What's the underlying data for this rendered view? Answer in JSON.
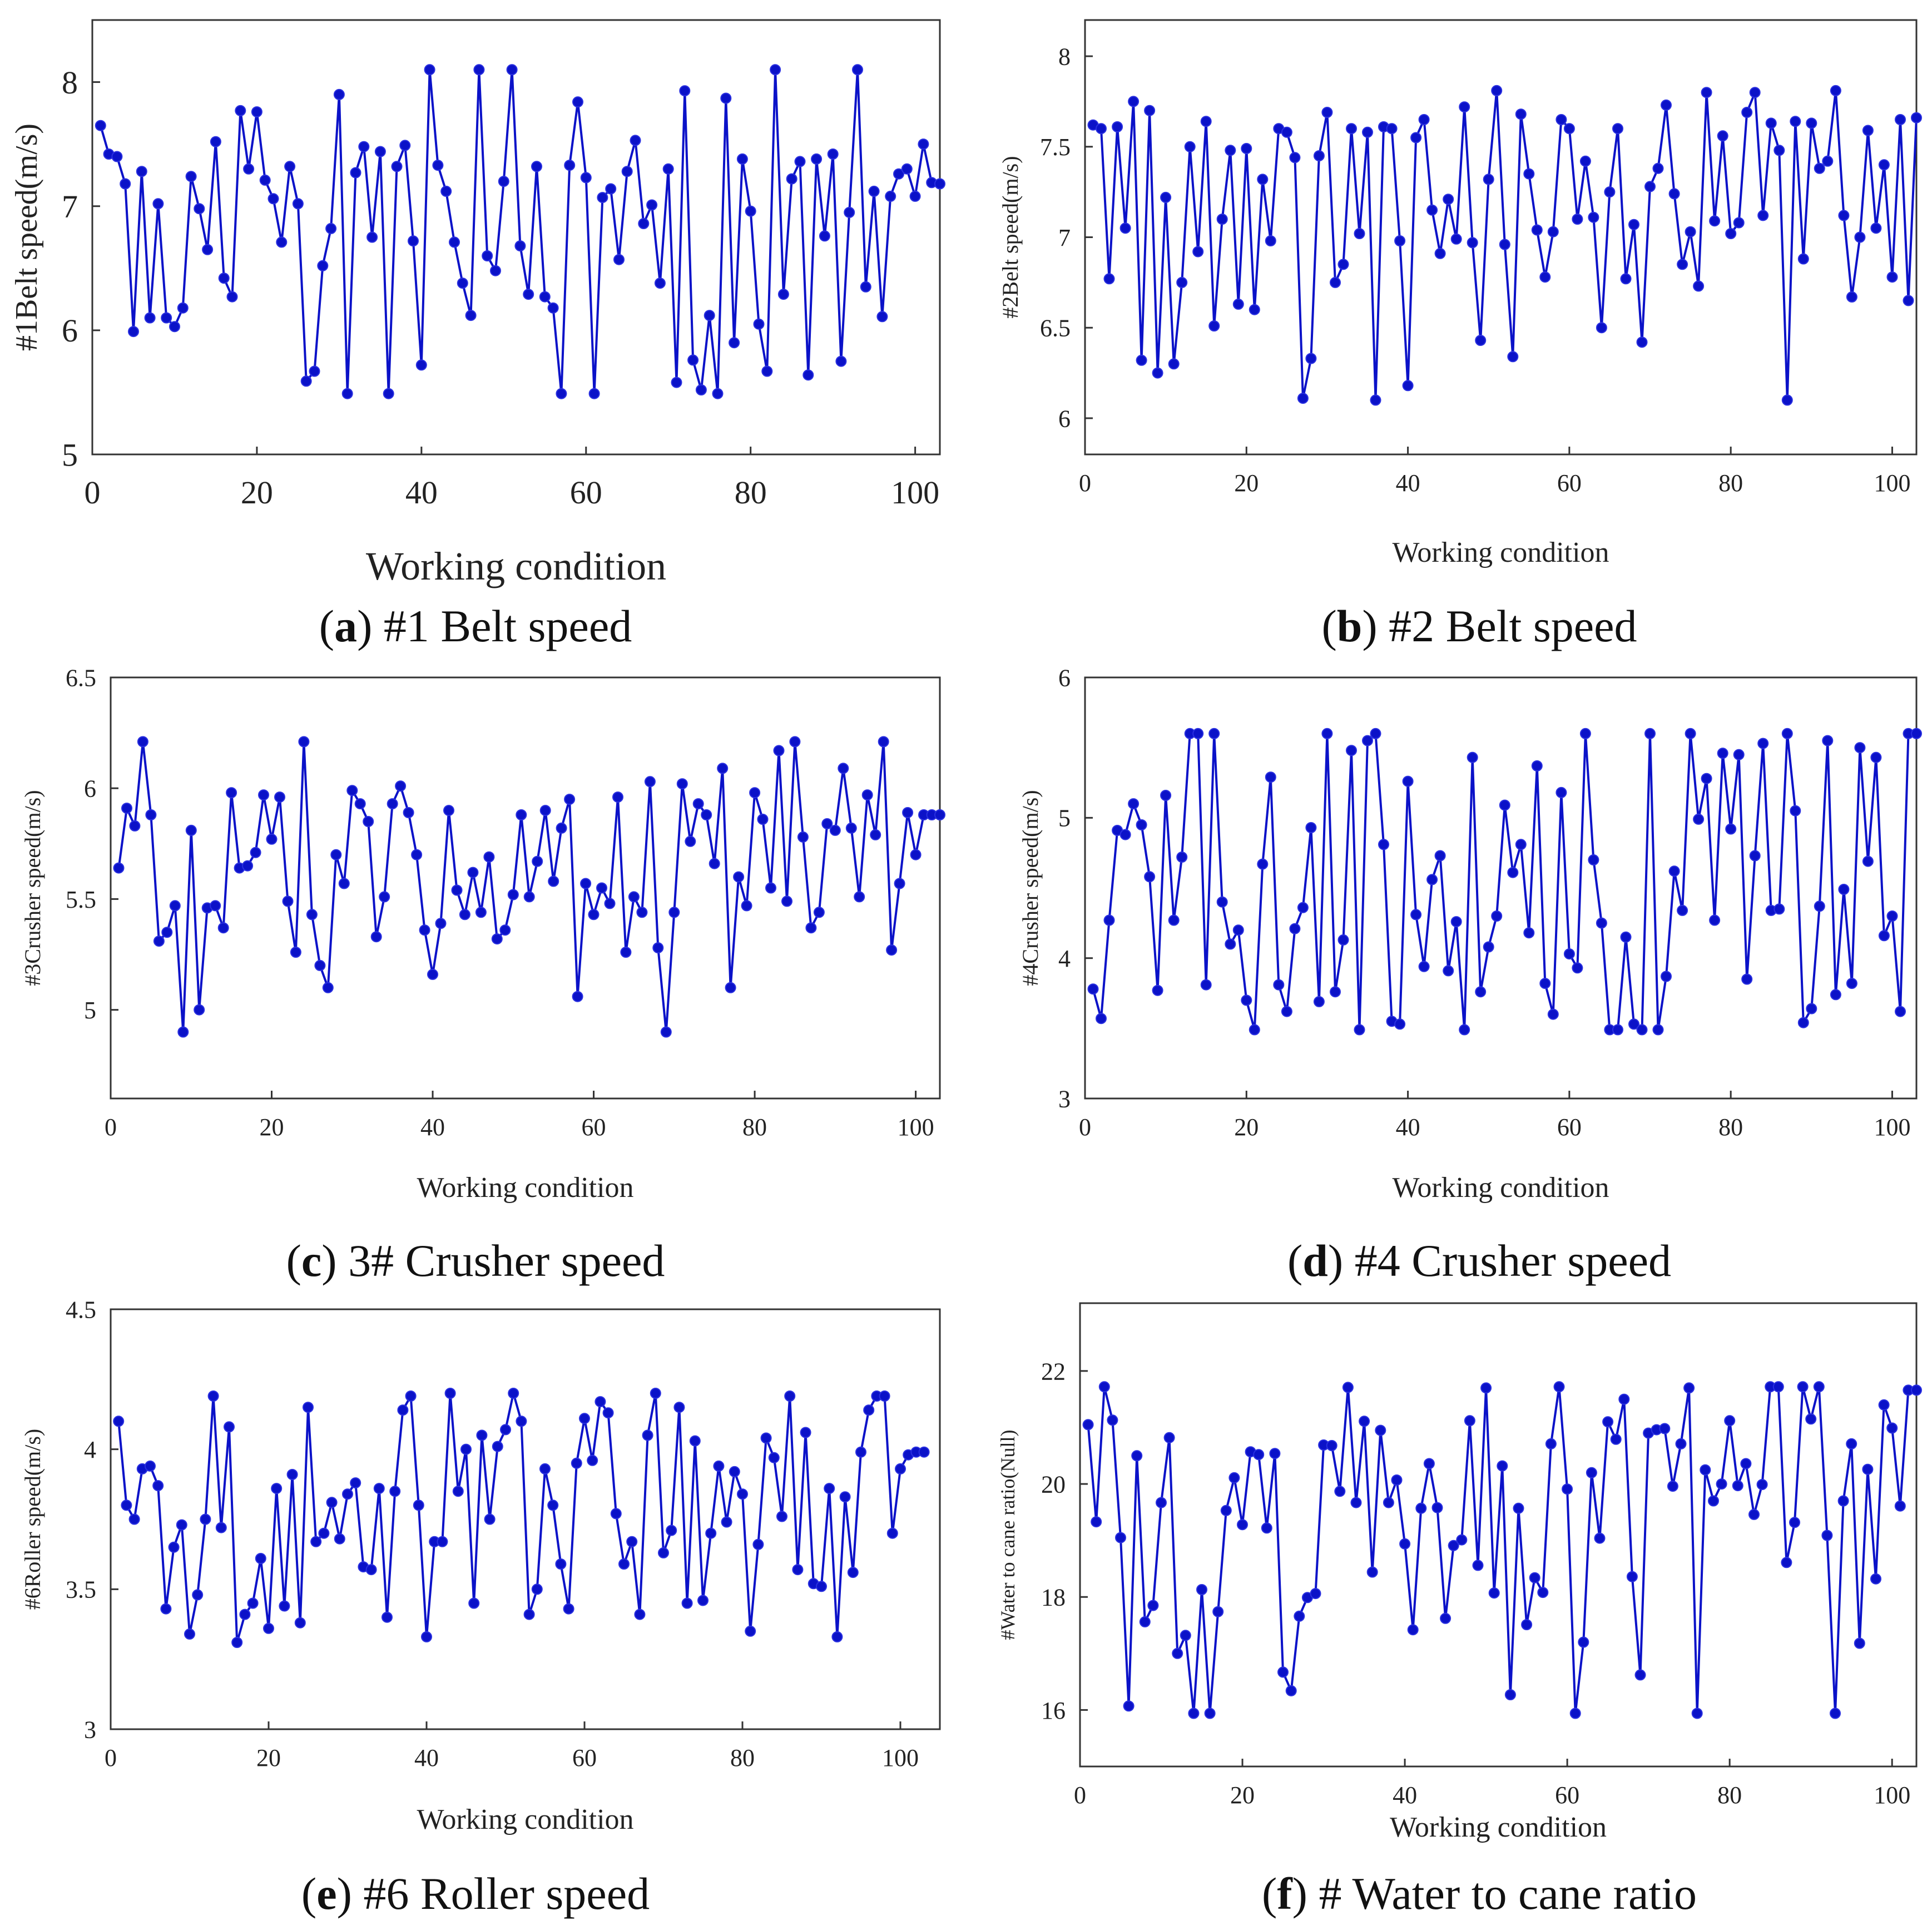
{
  "chart_data": [
    {
      "type": "line",
      "panel": "a",
      "caption_letter": "a",
      "caption_text": "#1 Belt speed",
      "xlabel": "Working condition",
      "ylabel": "#1Belt speed(m/s)",
      "xlim": [
        0,
        103
      ],
      "ylim": [
        5,
        8.5
      ],
      "xticks": [
        0,
        20,
        40,
        60,
        80,
        100
      ],
      "yticks": [
        5,
        6,
        7,
        8
      ],
      "line_color": "#0b12c8",
      "x": [
        1,
        2,
        3,
        4,
        5,
        6,
        7,
        8,
        9,
        10,
        11,
        12,
        13,
        14,
        15,
        16,
        17,
        18,
        19,
        20,
        21,
        22,
        23,
        24,
        25,
        26,
        27,
        28,
        29,
        30,
        31,
        32,
        33,
        34,
        35,
        36,
        37,
        38,
        39,
        40,
        41,
        42,
        43,
        44,
        45,
        46,
        47,
        48,
        49,
        50,
        51,
        52,
        53,
        54,
        55,
        56,
        57,
        58,
        59,
        60,
        61,
        62,
        63,
        64,
        65,
        66,
        67,
        68,
        69,
        70,
        71,
        72,
        73,
        74,
        75,
        76,
        77,
        78,
        79,
        80,
        81,
        82,
        83,
        84,
        85,
        86,
        87,
        88,
        89,
        90,
        91,
        92,
        93,
        94,
        95,
        96,
        97,
        98,
        99,
        100,
        101,
        102,
        103
      ],
      "values": [
        7.65,
        7.42,
        7.4,
        7.18,
        5.99,
        7.28,
        6.1,
        7.02,
        6.1,
        6.03,
        6.18,
        7.24,
        6.98,
        6.65,
        7.52,
        6.42,
        6.27,
        7.77,
        7.3,
        7.76,
        7.21,
        7.06,
        6.71,
        7.32,
        7.02,
        5.59,
        5.67,
        6.52,
        6.82,
        7.9,
        5.49,
        7.27,
        7.48,
        6.75,
        7.44,
        5.49,
        7.32,
        7.49,
        6.72,
        5.72,
        8.1,
        7.33,
        7.12,
        6.71,
        6.38,
        6.12,
        8.1,
        6.6,
        6.48,
        7.2,
        8.1,
        6.68,
        6.29,
        7.32,
        6.27,
        6.18,
        5.49,
        7.33,
        7.84,
        7.23,
        5.49,
        7.07,
        7.14,
        6.57,
        7.28,
        7.53,
        6.86,
        7.01,
        6.38,
        7.3,
        5.58,
        7.93,
        5.76,
        5.52,
        6.12,
        5.49,
        7.87,
        5.9,
        7.38,
        6.96,
        6.05,
        5.67,
        8.1,
        6.29,
        7.22,
        7.36,
        5.64,
        7.38,
        6.76,
        7.42,
        5.75,
        6.95,
        8.1,
        6.35,
        7.12,
        6.11,
        7.08,
        7.26,
        7.3,
        7.08,
        7.5,
        7.19,
        7.18
      ]
    },
    {
      "type": "line",
      "panel": "b",
      "caption_letter": "b",
      "caption_text": "#2 Belt speed",
      "xlabel": "Working condition",
      "ylabel": "#2Belt speed(m/s)",
      "xlim": [
        0,
        103
      ],
      "ylim": [
        5.8,
        8.2
      ],
      "xticks": [
        0,
        20,
        40,
        60,
        80,
        100
      ],
      "yticks": [
        6,
        6.5,
        7,
        7.5,
        8
      ],
      "ytick_labels": [
        "6",
        "6.5",
        "7",
        "7.5",
        "8"
      ],
      "line_color": "#0b12c8",
      "x": [
        1,
        2,
        3,
        4,
        5,
        6,
        7,
        8,
        9,
        10,
        11,
        12,
        13,
        14,
        15,
        16,
        17,
        18,
        19,
        20,
        21,
        22,
        23,
        24,
        25,
        26,
        27,
        28,
        29,
        30,
        31,
        32,
        33,
        34,
        35,
        36,
        37,
        38,
        39,
        40,
        41,
        42,
        43,
        44,
        45,
        46,
        47,
        48,
        49,
        50,
        51,
        52,
        53,
        54,
        55,
        56,
        57,
        58,
        59,
        60,
        61,
        62,
        63,
        64,
        65,
        66,
        67,
        68,
        69,
        70,
        71,
        72,
        73,
        74,
        75,
        76,
        77,
        78,
        79,
        80,
        81,
        82,
        83,
        84,
        85,
        86,
        87,
        88,
        89,
        90,
        91,
        92,
        93,
        94,
        95,
        96,
        97,
        98,
        99,
        100,
        101,
        102,
        103
      ],
      "values": [
        7.62,
        7.6,
        6.77,
        7.61,
        7.05,
        7.75,
        6.32,
        7.7,
        6.25,
        7.22,
        6.3,
        6.75,
        7.5,
        6.92,
        7.64,
        6.51,
        7.1,
        7.48,
        6.63,
        7.49,
        6.6,
        7.32,
        6.98,
        7.6,
        7.58,
        7.44,
        6.11,
        6.33,
        7.45,
        7.69,
        6.75,
        6.85,
        7.6,
        7.02,
        7.58,
        6.1,
        7.61,
        7.6,
        6.98,
        6.18,
        7.55,
        7.65,
        7.15,
        6.91,
        7.21,
        6.99,
        7.72,
        6.97,
        6.43,
        7.32,
        7.81,
        6.96,
        6.34,
        7.68,
        7.35,
        7.04,
        6.78,
        7.03,
        7.65,
        7.6,
        7.1,
        7.42,
        7.11,
        6.5,
        7.25,
        7.6,
        6.77,
        7.07,
        6.42,
        7.28,
        7.38,
        7.73,
        7.24,
        6.85,
        7.03,
        6.73,
        7.8,
        7.09,
        7.56,
        7.02,
        7.08,
        7.69,
        7.8,
        7.12,
        7.63,
        7.48,
        6.1,
        7.64,
        6.88,
        7.63,
        7.38,
        7.42,
        7.81,
        7.12,
        6.67,
        7.0,
        7.59,
        7.05,
        7.4,
        6.78,
        7.65,
        6.65,
        7.66
      ]
    },
    {
      "type": "line",
      "panel": "c",
      "caption_letter": "c",
      "caption_text": "3# Crusher speed",
      "xlabel": "Working condition",
      "ylabel": "#3Crusher speed(m/s)",
      "xlim": [
        0,
        103
      ],
      "ylim": [
        4.6,
        6.5
      ],
      "xticks": [
        0,
        20,
        40,
        60,
        80,
        100
      ],
      "yticks": [
        5,
        5.5,
        6,
        6.5
      ],
      "ytick_labels": [
        "5",
        "5.5",
        "6",
        "6.5"
      ],
      "line_color": "#0b12c8",
      "x": [
        1,
        2,
        3,
        4,
        5,
        6,
        7,
        8,
        9,
        10,
        11,
        12,
        13,
        14,
        15,
        16,
        17,
        18,
        19,
        20,
        21,
        22,
        23,
        24,
        25,
        26,
        27,
        28,
        29,
        30,
        31,
        32,
        33,
        34,
        35,
        36,
        37,
        38,
        39,
        40,
        41,
        42,
        43,
        44,
        45,
        46,
        47,
        48,
        49,
        50,
        51,
        52,
        53,
        54,
        55,
        56,
        57,
        58,
        59,
        60,
        61,
        62,
        63,
        64,
        65,
        66,
        67,
        68,
        69,
        70,
        71,
        72,
        73,
        74,
        75,
        76,
        77,
        78,
        79,
        80,
        81,
        82,
        83,
        84,
        85,
        86,
        87,
        88,
        89,
        90,
        91,
        92,
        93,
        94,
        95,
        96,
        97,
        98,
        99,
        100,
        101,
        102,
        103
      ],
      "values": [
        5.64,
        5.91,
        5.83,
        6.21,
        5.88,
        5.31,
        5.35,
        5.47,
        4.9,
        5.81,
        5.0,
        5.46,
        5.47,
        5.37,
        5.98,
        5.64,
        5.65,
        5.71,
        5.97,
        5.77,
        5.96,
        5.49,
        5.26,
        6.21,
        5.43,
        5.2,
        5.1,
        5.7,
        5.57,
        5.99,
        5.93,
        5.85,
        5.33,
        5.51,
        5.93,
        6.01,
        5.89,
        5.7,
        5.36,
        5.16,
        5.39,
        5.9,
        5.54,
        5.43,
        5.62,
        5.44,
        5.69,
        5.32,
        5.36,
        5.52,
        5.88,
        5.51,
        5.67,
        5.9,
        5.58,
        5.82,
        5.95,
        5.06,
        5.57,
        5.43,
        5.55,
        5.48,
        5.96,
        5.26,
        5.51,
        5.44,
        6.03,
        5.28,
        4.9,
        5.44,
        6.02,
        5.76,
        5.93,
        5.88,
        5.66,
        6.09,
        5.1,
        5.6,
        5.47,
        5.98,
        5.86,
        5.55,
        6.17,
        5.49,
        6.21,
        5.78,
        5.37,
        5.44,
        5.84,
        5.81,
        6.09,
        5.82,
        5.51,
        5.97,
        5.79,
        6.21,
        5.27,
        5.57,
        5.89,
        5.7,
        5.88,
        5.88,
        5.88
      ]
    },
    {
      "type": "line",
      "panel": "d",
      "caption_letter": "d",
      "caption_text": "#4 Crusher speed",
      "xlabel": "Working condition",
      "ylabel": "#4Crusher speed(m/s)",
      "xlim": [
        0,
        103
      ],
      "ylim": [
        3,
        6
      ],
      "xticks": [
        0,
        20,
        40,
        60,
        80,
        100
      ],
      "yticks": [
        3,
        4,
        5,
        6
      ],
      "line_color": "#0b12c8",
      "x": [
        1,
        2,
        3,
        4,
        5,
        6,
        7,
        8,
        9,
        10,
        11,
        12,
        13,
        14,
        15,
        16,
        17,
        18,
        19,
        20,
        21,
        22,
        23,
        24,
        25,
        26,
        27,
        28,
        29,
        30,
        31,
        32,
        33,
        34,
        35,
        36,
        37,
        38,
        39,
        40,
        41,
        42,
        43,
        44,
        45,
        46,
        47,
        48,
        49,
        50,
        51,
        52,
        53,
        54,
        55,
        56,
        57,
        58,
        59,
        60,
        61,
        62,
        63,
        64,
        65,
        66,
        67,
        68,
        69,
        70,
        71,
        72,
        73,
        74,
        75,
        76,
        77,
        78,
        79,
        80,
        81,
        82,
        83,
        84,
        85,
        86,
        87,
        88,
        89,
        90,
        91,
        92,
        93,
        94,
        95,
        96,
        97,
        98,
        99,
        100,
        101,
        102,
        103
      ],
      "values": [
        3.78,
        3.57,
        4.27,
        4.91,
        4.88,
        5.1,
        4.95,
        4.58,
        3.77,
        5.16,
        4.27,
        4.72,
        5.6,
        5.6,
        3.81,
        5.6,
        4.4,
        4.1,
        4.2,
        3.7,
        3.49,
        4.67,
        5.29,
        3.81,
        3.62,
        4.21,
        4.36,
        4.93,
        3.69,
        5.6,
        3.76,
        4.13,
        5.48,
        3.49,
        5.55,
        5.6,
        4.81,
        3.55,
        3.53,
        5.26,
        4.31,
        3.94,
        4.56,
        4.73,
        3.91,
        4.26,
        3.49,
        5.43,
        3.76,
        4.08,
        4.3,
        5.09,
        4.61,
        4.81,
        4.18,
        5.37,
        3.82,
        3.6,
        5.18,
        4.03,
        3.93,
        5.6,
        4.7,
        4.25,
        3.49,
        3.49,
        4.15,
        3.53,
        3.49,
        5.6,
        3.49,
        3.87,
        4.62,
        4.34,
        5.6,
        4.99,
        5.28,
        4.27,
        5.46,
        4.92,
        5.45,
        3.85,
        4.73,
        5.53,
        4.34,
        4.35,
        5.6,
        5.05,
        3.54,
        3.64,
        4.37,
        5.55,
        3.74,
        4.49,
        3.82,
        5.5,
        4.69,
        5.43,
        4.16,
        4.3,
        3.62,
        5.6,
        5.6
      ]
    },
    {
      "type": "line",
      "panel": "e",
      "caption_letter": "e",
      "caption_text": "#6 Roller speed",
      "xlabel": "Working condition",
      "ylabel": "#6Roller speed(m/s)",
      "xlim": [
        0,
        105
      ],
      "ylim": [
        3,
        4.5
      ],
      "xticks": [
        0,
        20,
        40,
        60,
        80,
        100
      ],
      "yticks": [
        3,
        3.5,
        4,
        4.5
      ],
      "ytick_labels": [
        "3",
        "3.5",
        "4",
        "4.5"
      ],
      "line_color": "#0b12c8",
      "x": [
        1,
        2,
        3,
        4,
        5,
        6,
        7,
        8,
        9,
        10,
        11,
        12,
        13,
        14,
        15,
        16,
        17,
        18,
        19,
        20,
        21,
        22,
        23,
        24,
        25,
        26,
        27,
        28,
        29,
        30,
        31,
        32,
        33,
        34,
        35,
        36,
        37,
        38,
        39,
        40,
        41,
        42,
        43,
        44,
        45,
        46,
        47,
        48,
        49,
        50,
        51,
        52,
        53,
        54,
        55,
        56,
        57,
        58,
        59,
        60,
        61,
        62,
        63,
        64,
        65,
        66,
        67,
        68,
        69,
        70,
        71,
        72,
        73,
        74,
        75,
        76,
        77,
        78,
        79,
        80,
        81,
        82,
        83,
        84,
        85,
        86,
        87,
        88,
        89,
        90,
        91,
        92,
        93,
        94,
        95,
        96,
        97,
        98,
        99,
        100,
        101,
        102,
        103
      ],
      "values": [
        4.1,
        3.8,
        3.75,
        3.93,
        3.94,
        3.87,
        3.43,
        3.65,
        3.73,
        3.34,
        3.48,
        3.75,
        4.19,
        3.72,
        4.08,
        3.31,
        3.41,
        3.45,
        3.61,
        3.36,
        3.86,
        3.44,
        3.91,
        3.38,
        4.15,
        3.67,
        3.7,
        3.81,
        3.68,
        3.84,
        3.88,
        3.58,
        3.57,
        3.86,
        3.4,
        3.85,
        4.14,
        4.19,
        3.8,
        3.33,
        3.67,
        3.67,
        4.2,
        3.85,
        4.0,
        3.45,
        4.05,
        3.75,
        4.01,
        4.07,
        4.2,
        4.1,
        3.41,
        3.5,
        3.93,
        3.8,
        3.59,
        3.43,
        3.95,
        4.11,
        3.96,
        4.17,
        4.13,
        3.77,
        3.59,
        3.67,
        3.41,
        4.05,
        4.2,
        3.63,
        3.71,
        4.15,
        3.45,
        4.03,
        3.46,
        3.7,
        3.94,
        3.74,
        3.92,
        3.84,
        3.35,
        3.66,
        4.04,
        3.97,
        3.76,
        4.19,
        3.57,
        4.06,
        3.52,
        3.51,
        3.86,
        3.33,
        3.83,
        3.56,
        3.99,
        4.14,
        4.19,
        4.19,
        3.7,
        3.93,
        3.98,
        3.99,
        3.99
      ]
    },
    {
      "type": "line",
      "panel": "f",
      "caption_letter": "f",
      "caption_text": "# Water to cane ratio",
      "xlabel": "Working condition",
      "ylabel": "#Water to cane ratio(Null)",
      "xlim": [
        0,
        103
      ],
      "ylim": [
        15,
        23.2
      ],
      "xticks": [
        0,
        20,
        40,
        60,
        80,
        100
      ],
      "yticks": [
        16,
        18,
        20,
        22
      ],
      "line_color": "#0b12c8",
      "x": [
        1,
        2,
        3,
        4,
        5,
        6,
        7,
        8,
        9,
        10,
        11,
        12,
        13,
        14,
        15,
        16,
        17,
        18,
        19,
        20,
        21,
        22,
        23,
        24,
        25,
        26,
        27,
        28,
        29,
        30,
        31,
        32,
        33,
        34,
        35,
        36,
        37,
        38,
        39,
        40,
        41,
        42,
        43,
        44,
        45,
        46,
        47,
        48,
        49,
        50,
        51,
        52,
        53,
        54,
        55,
        56,
        57,
        58,
        59,
        60,
        61,
        62,
        63,
        64,
        65,
        66,
        67,
        68,
        69,
        70,
        71,
        72,
        73,
        74,
        75,
        76,
        77,
        78,
        79,
        80,
        81,
        82,
        83,
        84,
        85,
        86,
        87,
        88,
        89,
        90,
        91,
        92,
        93,
        94,
        95,
        96,
        97,
        98,
        99,
        100,
        101,
        102,
        103
      ],
      "values": [
        21.05,
        19.33,
        21.72,
        21.13,
        19.05,
        16.07,
        20.5,
        17.56,
        17.85,
        19.67,
        20.82,
        17.0,
        17.32,
        15.94,
        18.13,
        15.94,
        17.74,
        19.53,
        20.11,
        19.28,
        20.57,
        20.52,
        19.22,
        20.54,
        16.67,
        16.34,
        17.66,
        17.99,
        18.06,
        20.69,
        20.68,
        19.87,
        21.71,
        19.67,
        21.11,
        18.44,
        20.95,
        19.67,
        20.07,
        18.94,
        17.42,
        19.57,
        20.36,
        19.58,
        17.62,
        18.91,
        19.01,
        21.12,
        18.56,
        21.7,
        18.07,
        20.32,
        16.27,
        19.57,
        17.51,
        18.34,
        18.08,
        20.71,
        21.72,
        19.91,
        15.94,
        17.2,
        20.2,
        19.04,
        21.1,
        20.79,
        21.5,
        18.36,
        16.62,
        20.9,
        20.96,
        20.98,
        19.96,
        20.71,
        21.7,
        15.94,
        20.25,
        19.7,
        20.0,
        21.12,
        19.97,
        20.36,
        19.46,
        19.99,
        21.72,
        21.72,
        18.61,
        19.32,
        21.72,
        21.15,
        21.72,
        19.09,
        15.94,
        19.7,
        20.71,
        17.18,
        20.26,
        18.32,
        21.4,
        20.99,
        19.61,
        21.66,
        21.66
      ]
    }
  ]
}
